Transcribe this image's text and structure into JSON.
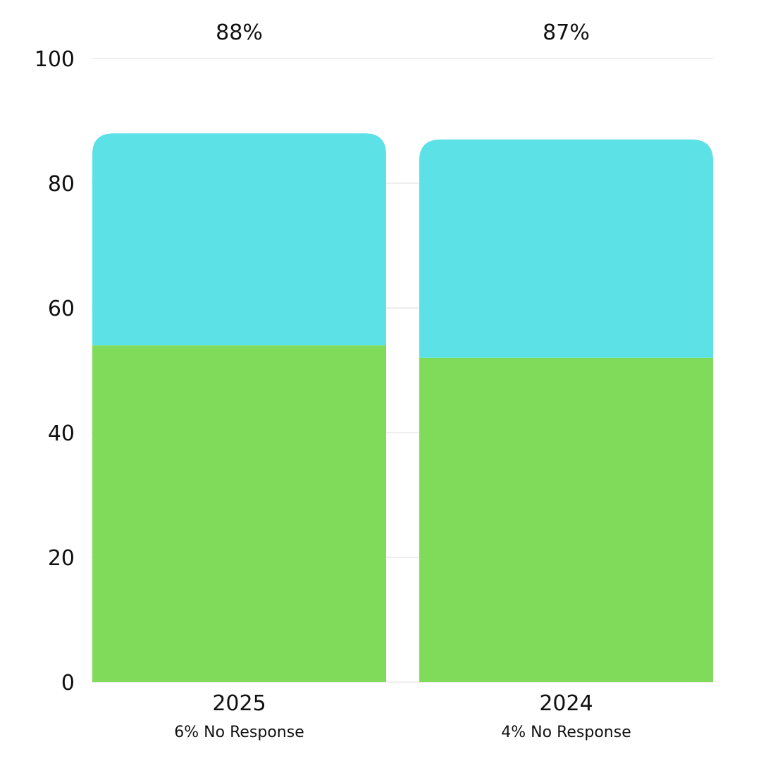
{
  "chart_data": {
    "type": "bar",
    "stacked": true,
    "categories": [
      "2025",
      "2024"
    ],
    "category_notes": [
      "6% No Response",
      "4% No Response"
    ],
    "totals": [
      "88%",
      "87%"
    ],
    "series": [
      {
        "values": [
          54,
          52
        ],
        "color": "#80DB5A"
      },
      {
        "values": [
          34,
          35
        ],
        "color": "#5CE1E6"
      }
    ],
    "ylim": [
      0,
      100
    ],
    "yticks": [
      0,
      20,
      40,
      60,
      80,
      100
    ],
    "grid": true,
    "legend": "none",
    "title": "",
    "xlabel": "",
    "ylabel": ""
  }
}
